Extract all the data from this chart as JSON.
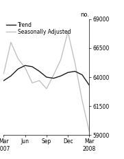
{
  "title": "",
  "ylabel": "no.",
  "ylim": [
    59000,
    69000
  ],
  "yticks": [
    59000,
    61500,
    64000,
    66500,
    69000
  ],
  "xtick_labels": [
    "Mar\n2007",
    "Jun",
    "Sep",
    "Dec",
    "Mar\n2008"
  ],
  "legend": [
    "Trend",
    "Seasonally Adjusted"
  ],
  "trend_color": "#1a1a1a",
  "seasonal_color": "#bbbbbb",
  "background_color": "#ffffff",
  "trend_y": [
    63700,
    64100,
    64700,
    65000,
    64900,
    64500,
    64000,
    63900,
    64100,
    64400,
    64500,
    64200,
    63300
  ],
  "seasonal_y": [
    64300,
    67000,
    65600,
    64800,
    63500,
    63700,
    63000,
    64200,
    65500,
    67900,
    65200,
    62000,
    59300
  ]
}
